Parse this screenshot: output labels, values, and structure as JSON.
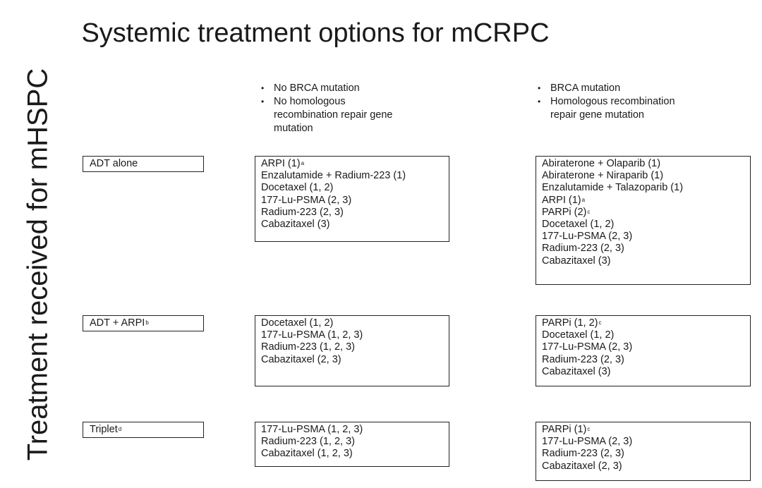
{
  "title": "Systemic treatment options for mCRPC",
  "vertical_title": "Treatment received for mHSPC",
  "columns": {
    "no_mutation": [
      "No BRCA mutation",
      "No homologous recombination repair gene mutation"
    ],
    "mutation": [
      "BRCA mutation",
      "Homologous recombination repair gene mutation"
    ]
  },
  "rows": [
    {
      "label": "ADT alone",
      "label_sup": "",
      "no_mutation": [
        {
          "text": "ARPI (1)",
          "sup": "a"
        },
        {
          "text": "Enzalutamide + Radium-223 (1)",
          "sup": ""
        },
        {
          "text": "Docetaxel (1, 2)",
          "sup": ""
        },
        {
          "text": "177-Lu-PSMA (2, 3)",
          "sup": ""
        },
        {
          "text": "Radium-223 (2, 3)",
          "sup": ""
        },
        {
          "text": "Cabazitaxel  (3)",
          "sup": ""
        }
      ],
      "mutation": [
        {
          "text": "Abiraterone + Olaparib (1)",
          "sup": ""
        },
        {
          "text": "Abiraterone + Niraparib (1)",
          "sup": ""
        },
        {
          "text": "Enzalutamide + Talazoparib (1)",
          "sup": ""
        },
        {
          "text": "ARPI (1)",
          "sup": "a"
        },
        {
          "text": "PARPi  (2)",
          "sup": "c"
        },
        {
          "text": "Docetaxel (1, 2)",
          "sup": ""
        },
        {
          "text": "177-Lu-PSMA (2, 3)",
          "sup": ""
        },
        {
          "text": "Radium-223 (2, 3)",
          "sup": ""
        },
        {
          "text": "Cabazitaxel  (3)",
          "sup": ""
        }
      ]
    },
    {
      "label": "ADT + ARPI",
      "label_sup": "b",
      "no_mutation": [
        {
          "text": "Docetaxel (1, 2)",
          "sup": ""
        },
        {
          "text": "177-Lu-PSMA (1, 2, 3)",
          "sup": ""
        },
        {
          "text": "Radium-223 (1, 2, 3)",
          "sup": ""
        },
        {
          "text": "Cabazitaxel  (2, 3)",
          "sup": ""
        }
      ],
      "mutation": [
        {
          "text": "PARPi  (1, 2)",
          "sup": "c"
        },
        {
          "text": "Docetaxel (1, 2)",
          "sup": ""
        },
        {
          "text": "177-Lu-PSMA (2, 3)",
          "sup": ""
        },
        {
          "text": "Radium-223 (2, 3)",
          "sup": ""
        },
        {
          "text": "Cabazitaxel  (3)",
          "sup": ""
        }
      ]
    },
    {
      "label": "Triplet",
      "label_sup": "d",
      "no_mutation": [
        {
          "text": "177-Lu-PSMA (1, 2, 3)",
          "sup": ""
        },
        {
          "text": "Radium-223 (1, 2, 3)",
          "sup": ""
        },
        {
          "text": "Cabazitaxel  (1, 2, 3)",
          "sup": ""
        }
      ],
      "mutation": [
        {
          "text": "PARPi  (1)",
          "sup": "c"
        },
        {
          "text": "177-Lu-PSMA (2, 3)",
          "sup": ""
        },
        {
          "text": "Radium-223 (2, 3)",
          "sup": ""
        },
        {
          "text": "Cabazitaxel  (2, 3)",
          "sup": ""
        }
      ]
    }
  ]
}
